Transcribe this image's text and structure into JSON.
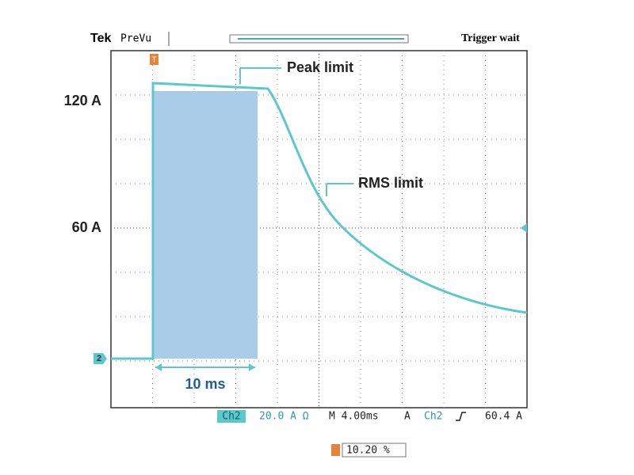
{
  "header": {
    "brand": "Tek",
    "mode": "PreVu",
    "status": "Trigger wait"
  },
  "annotations": {
    "peak": "Peak limit",
    "rms": "RMS limit",
    "duration": "10 ms"
  },
  "axis_labels": {
    "upper": "120 A",
    "middle": "60 A"
  },
  "markers": {
    "trigger": "T",
    "channel": "2"
  },
  "readout": {
    "channel": "Ch2",
    "scale": "20.0 A Ω",
    "timebase": "M 4.00ms",
    "trigger_mode": "A",
    "trigger_channel": "Ch2",
    "trigger_level": "60.4 A",
    "position": "10.20 %"
  }
}
